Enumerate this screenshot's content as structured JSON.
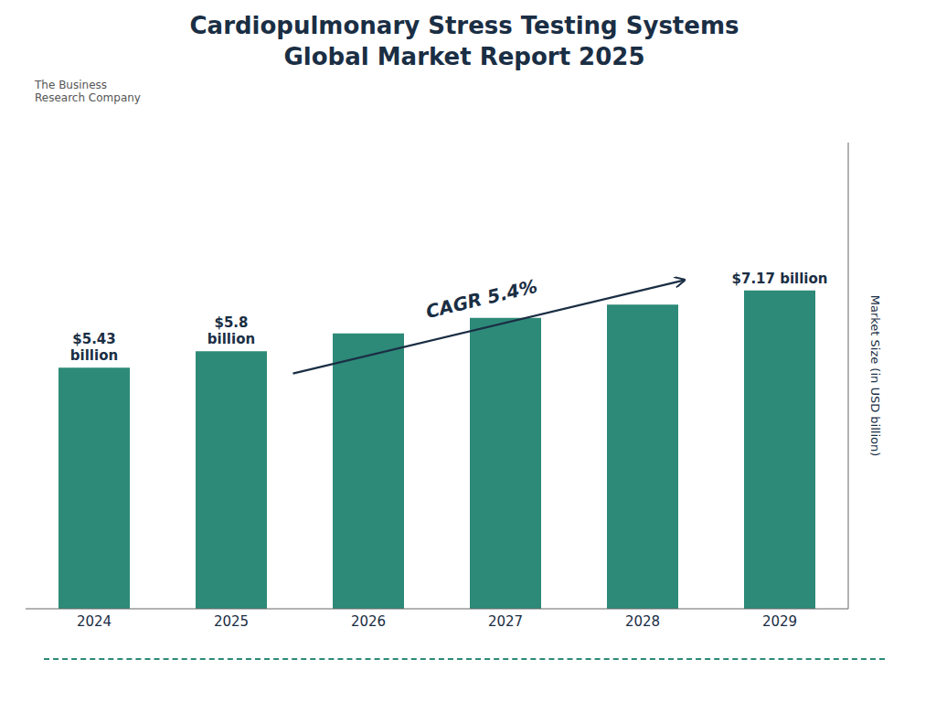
{
  "chart_data": {
    "type": "bar",
    "title": "Cardiopulmonary Stress Testing Systems\nGlobal Market Report 2025",
    "categories": [
      "2024",
      "2025",
      "2026",
      "2027",
      "2028",
      "2029"
    ],
    "values": [
      5.43,
      5.8,
      6.2,
      6.55,
      6.85,
      7.17
    ],
    "value_labels": [
      "$5.43\nbillion",
      "$5.8\nbillion",
      null,
      null,
      null,
      "$7.17 billion"
    ],
    "color": "#2d8a78",
    "ylabel": "Market Size (in USD billion)",
    "ylim": [
      0,
      10.5
    ],
    "grid": false,
    "tick_labels": "x",
    "annotations": [
      {
        "text": "CAGR 5.4%"
      },
      {
        "text": "The Business\nResearch Company"
      }
    ]
  }
}
